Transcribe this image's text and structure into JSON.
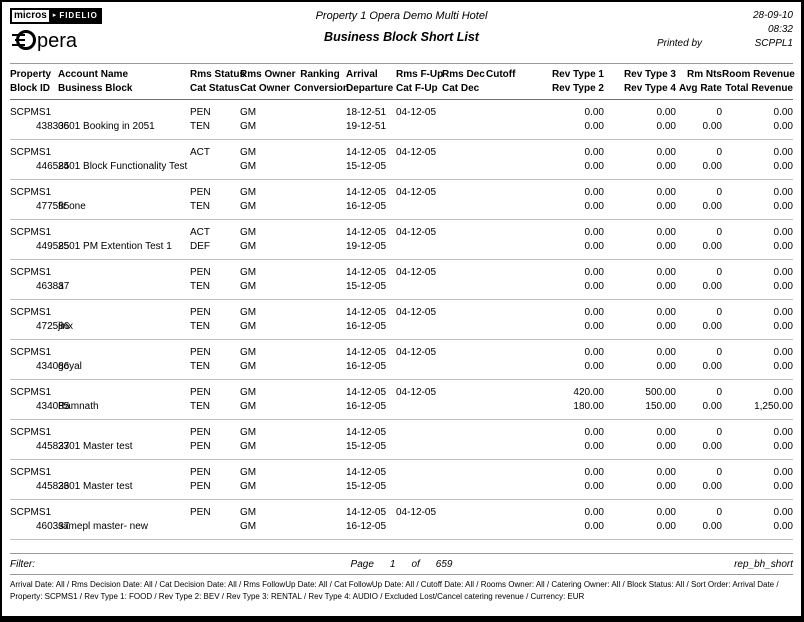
{
  "header": {
    "logo": {
      "micros": "micros",
      "arrow_icon": "▸",
      "fidelio": "FIDELIO",
      "opera_text": "pera"
    },
    "property_title": "Property 1 Opera Demo Multi Hotel",
    "report_title": "Business Block Short List",
    "date": "28-09-10",
    "time": "08:32",
    "printed_by_label": "Printed by",
    "printed_by_user": "SCPPL1"
  },
  "table": {
    "columns": [
      {
        "top": "Property",
        "bottom": "Block ID",
        "align": "left"
      },
      {
        "top": "Account Name",
        "bottom": "Business Block",
        "align": "left"
      },
      {
        "top": "Rms Status",
        "bottom": "Cat Status",
        "align": "left"
      },
      {
        "top": "Rms Owner",
        "bottom": "Cat Owner",
        "align": "left"
      },
      {
        "top": "Ranking",
        "bottom": "Conversion",
        "align": "center"
      },
      {
        "top": "Arrival",
        "bottom": "Departure",
        "align": "left"
      },
      {
        "top": "Rms F-Up",
        "bottom": "Cat F-Up",
        "align": "left"
      },
      {
        "top": "Rms Dec",
        "bottom": "Cat Dec",
        "align": "left"
      },
      {
        "top": "Cutoff",
        "bottom": "",
        "align": "left"
      },
      {
        "top": "Rev Type 1",
        "bottom": "Rev Type 2",
        "align": "right"
      },
      {
        "top": "Rev Type 3",
        "bottom": "Rev Type 4",
        "align": "right"
      },
      {
        "top": "Rm Nts",
        "bottom": "Avg Rate",
        "align": "right"
      },
      {
        "top": "Room Revenue",
        "bottom": "Total Revenue",
        "align": "right"
      }
    ],
    "rows": [
      {
        "line1": [
          "SCPMS1",
          "",
          "PEN",
          "GM",
          "",
          "18-12-51",
          "04-12-05",
          "",
          "",
          "0.00",
          "0.00",
          "0",
          "0.00"
        ],
        "line2": [
          "438335",
          "0601 Booking in 2051",
          "TEN",
          "GM",
          "",
          "19-12-51",
          "",
          "",
          "",
          "0.00",
          "0.00",
          "0.00",
          "0.00"
        ]
      },
      {
        "line1": [
          "SCPMS1",
          "",
          "ACT",
          "GM",
          "",
          "14-12-05",
          "04-12-05",
          "",
          "",
          "0.00",
          "0.00",
          "0",
          "0.00"
        ],
        "line2": [
          "446585",
          "2401 Block Functionality Test",
          "",
          "GM",
          "",
          "15-12-05",
          "",
          "",
          "",
          "0.00",
          "0.00",
          "0.00",
          "0.00"
        ]
      },
      {
        "line1": [
          "SCPMS1",
          "",
          "PEN",
          "GM",
          "",
          "14-12-05",
          "04-12-05",
          "",
          "",
          "0.00",
          "0.00",
          "0",
          "0.00"
        ],
        "line2": [
          "477585",
          "fir one",
          "TEN",
          "GM",
          "",
          "16-12-05",
          "",
          "",
          "",
          "0.00",
          "0.00",
          "0.00",
          "0.00"
        ]
      },
      {
        "line1": [
          "SCPMS1",
          "",
          "ACT",
          "GM",
          "",
          "14-12-05",
          "04-12-05",
          "",
          "",
          "0.00",
          "0.00",
          "0",
          "0.00"
        ],
        "line2": [
          "449585",
          "2501 PM Extention Test 1",
          "DEF",
          "GM",
          "",
          "19-12-05",
          "",
          "",
          "",
          "0.00",
          "0.00",
          "0.00",
          "0.00"
        ]
      },
      {
        "line1": [
          "SCPMS1",
          "",
          "PEN",
          "GM",
          "",
          "14-12-05",
          "04-12-05",
          "",
          "",
          "0.00",
          "0.00",
          "0",
          "0.00"
        ],
        "line2": [
          "463837",
          "a",
          "TEN",
          "GM",
          "",
          "15-12-05",
          "",
          "",
          "",
          "0.00",
          "0.00",
          "0.00",
          "0.00"
        ]
      },
      {
        "line1": [
          "SCPMS1",
          "",
          "PEN",
          "GM",
          "",
          "14-12-05",
          "04-12-05",
          "",
          "",
          "0.00",
          "0.00",
          "0",
          "0.00"
        ],
        "line2": [
          "472586",
          "jinx",
          "TEN",
          "GM",
          "",
          "16-12-05",
          "",
          "",
          "",
          "0.00",
          "0.00",
          "0.00",
          "0.00"
        ]
      },
      {
        "line1": [
          "SCPMS1",
          "",
          "PEN",
          "GM",
          "",
          "14-12-05",
          "04-12-05",
          "",
          "",
          "0.00",
          "0.00",
          "0",
          "0.00"
        ],
        "line2": [
          "434086",
          "goyal",
          "TEN",
          "GM",
          "",
          "16-12-05",
          "",
          "",
          "",
          "0.00",
          "0.00",
          "0.00",
          "0.00"
        ]
      },
      {
        "line1": [
          "SCPMS1",
          "",
          "PEN",
          "GM",
          "",
          "14-12-05",
          "04-12-05",
          "",
          "",
          "420.00",
          "500.00",
          "0",
          "0.00"
        ],
        "line2": [
          "434085",
          "Ramnath",
          "TEN",
          "GM",
          "",
          "16-12-05",
          "",
          "",
          "",
          "180.00",
          "150.00",
          "0.00",
          "1,250.00"
        ]
      },
      {
        "line1": [
          "SCPMS1",
          "",
          "PEN",
          "GM",
          "",
          "14-12-05",
          "",
          "",
          "",
          "0.00",
          "0.00",
          "0",
          "0.00"
        ],
        "line2": [
          "445837",
          "2301 Master test",
          "PEN",
          "GM",
          "",
          "15-12-05",
          "",
          "",
          "",
          "0.00",
          "0.00",
          "0.00",
          "0.00"
        ]
      },
      {
        "line1": [
          "SCPMS1",
          "",
          "PEN",
          "GM",
          "",
          "14-12-05",
          "",
          "",
          "",
          "0.00",
          "0.00",
          "0",
          "0.00"
        ],
        "line2": [
          "445836",
          "2301 Master test",
          "PEN",
          "GM",
          "",
          "15-12-05",
          "",
          "",
          "",
          "0.00",
          "0.00",
          "0.00",
          "0.00"
        ]
      },
      {
        "line1": [
          "SCPMS1",
          "",
          "PEN",
          "GM",
          "",
          "14-12-05",
          "04-12-05",
          "",
          "",
          "0.00",
          "0.00",
          "0",
          "0.00"
        ],
        "line2": [
          "460337",
          "samepl master- new",
          "",
          "GM",
          "",
          "16-12-05",
          "",
          "",
          "",
          "0.00",
          "0.00",
          "0.00",
          "0.00"
        ]
      }
    ]
  },
  "footer": {
    "filter_label": "Filter:",
    "page_label": "Page",
    "page_number": "1",
    "of_label": "of",
    "page_total": "659",
    "report_id": "rep_bh_short",
    "filter_details": "Arrival Date: All / Rms Decision Date: All / Cat Decision Date: All / Rms FollowUp Date: All / Cat FollowUp Date: All / Cutoff Date: All / Rooms Owner: All / Catering Owner: All / Block Status: All / Sort Order: Arrival Date / Property: SCPMS1 / Rev Type 1: FOOD / Rev Type 2: BEV / Rev Type 3: RENTAL / Rev Type 4: AUDIO / Excluded Lost/Cancel catering revenue / Currency: EUR"
  }
}
